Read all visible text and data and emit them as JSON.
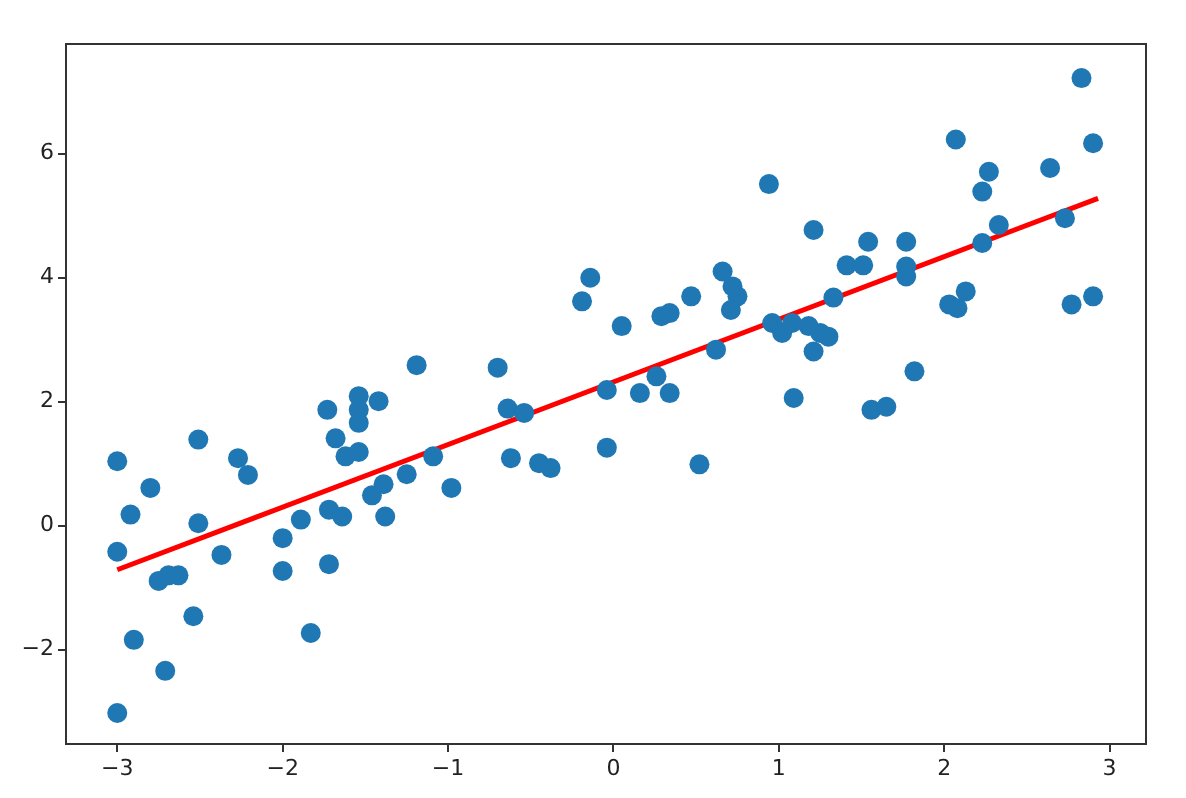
{
  "chart_data": {
    "type": "scatter",
    "xlim": [
      -3.31,
      3.22
    ],
    "ylim": [
      -3.52,
      7.77
    ],
    "xticks": [
      {
        "value": -3,
        "label": "−3"
      },
      {
        "value": -2,
        "label": "−2"
      },
      {
        "value": -1,
        "label": "−1"
      },
      0,
      1,
      2,
      3
    ],
    "yticks": [
      {
        "value": -2,
        "label": "−2"
      },
      0,
      2,
      4,
      6
    ],
    "grid": false,
    "legend": false,
    "series": [
      {
        "marker": "circle",
        "color": "#1f77b4",
        "x": [
          -3.0,
          -3.0,
          -2.92,
          -2.8,
          -2.9,
          -3.0,
          -2.71,
          -2.75,
          -2.69,
          -2.63,
          -2.54,
          -2.51,
          -2.51,
          -2.37,
          -2.27,
          -2.21,
          -2.0,
          -2.0,
          -1.89,
          -1.83,
          -1.73,
          -1.72,
          -1.72,
          -1.64,
          -1.68,
          -1.62,
          -1.54,
          -1.54,
          -1.54,
          -1.54,
          -1.42,
          -1.46,
          -1.39,
          -1.38,
          -1.25,
          -1.19,
          -1.09,
          -0.98,
          -0.7,
          -0.64,
          -0.54,
          -0.62,
          -0.45,
          -0.38,
          -0.19,
          -0.14,
          -0.04,
          -0.04,
          0.05,
          0.16,
          0.26,
          0.34,
          0.29,
          0.34,
          0.47,
          0.52,
          0.62,
          0.66,
          0.72,
          0.75,
          0.71,
          0.94,
          0.96,
          1.02,
          1.08,
          1.09,
          1.21,
          1.18,
          1.25,
          1.3,
          1.21,
          1.33,
          1.41,
          1.51,
          1.54,
          1.56,
          1.65,
          1.77,
          1.77,
          1.77,
          1.82,
          2.03,
          2.08,
          2.13,
          2.07,
          2.23,
          2.23,
          2.27,
          2.33,
          2.64,
          2.73,
          2.77,
          2.83,
          2.9,
          2.9
        ],
        "values": [
          1.04,
          -0.42,
          0.18,
          0.61,
          -1.84,
          -3.02,
          -2.34,
          -0.89,
          -0.8,
          -0.8,
          -1.46,
          1.39,
          0.04,
          -0.47,
          1.09,
          0.82,
          -0.2,
          -0.73,
          0.1,
          -1.73,
          1.87,
          -0.62,
          0.26,
          0.15,
          1.41,
          1.12,
          2.09,
          1.87,
          1.66,
          1.19,
          2.01,
          0.49,
          0.67,
          0.15,
          0.83,
          2.59,
          1.12,
          0.61,
          2.55,
          1.89,
          1.82,
          1.09,
          1.01,
          0.93,
          3.62,
          4.0,
          1.26,
          2.19,
          3.22,
          2.14,
          2.41,
          2.14,
          3.38,
          3.43,
          3.7,
          0.99,
          2.84,
          4.1,
          3.86,
          3.7,
          3.48,
          5.51,
          3.27,
          3.11,
          3.27,
          2.06,
          4.77,
          3.22,
          3.11,
          3.05,
          2.81,
          3.68,
          4.2,
          4.2,
          4.58,
          1.87,
          1.92,
          4.58,
          4.18,
          4.02,
          2.49,
          3.57,
          3.51,
          3.78,
          6.23,
          4.56,
          5.39,
          5.71,
          4.85,
          5.77,
          4.96,
          3.57,
          7.22,
          6.17,
          3.7
        ]
      },
      {
        "type": "line",
        "marker": "none",
        "color": "#ff0000",
        "x": [
          -3.0,
          2.93
        ],
        "values": [
          -0.71,
          5.28
        ]
      }
    ]
  }
}
